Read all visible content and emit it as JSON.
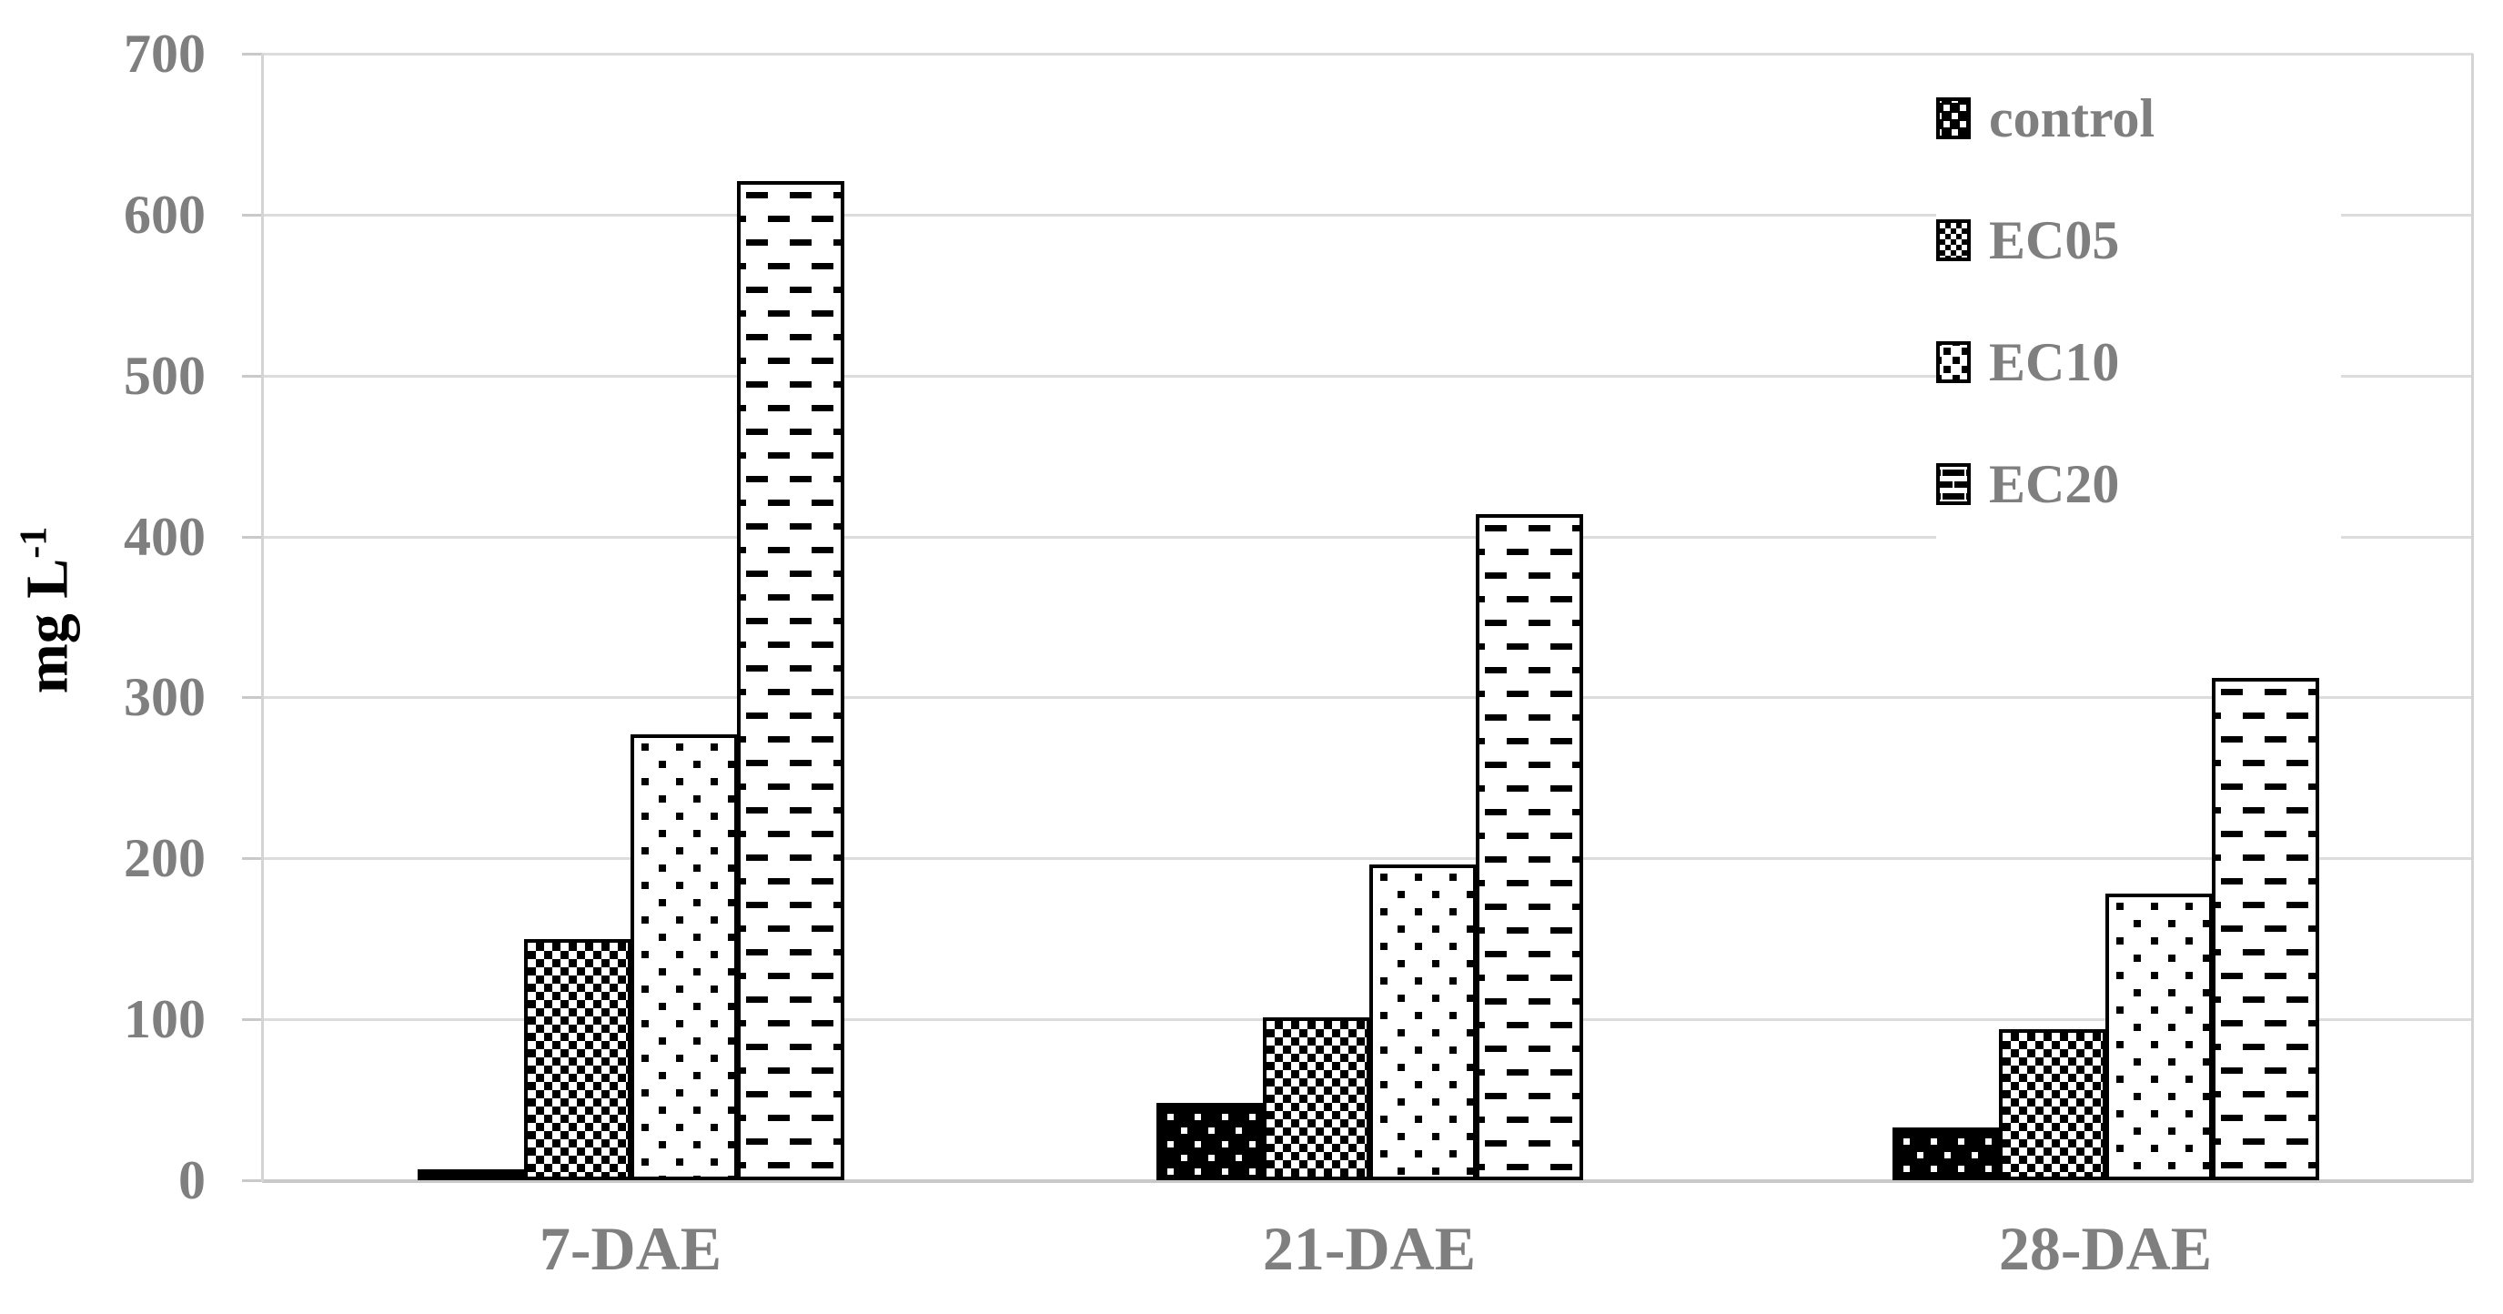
{
  "chart_data": {
    "type": "bar",
    "title": "",
    "categories": [
      "7-DAE",
      "21-DAE",
      "28-DAE"
    ],
    "series": [
      {
        "name": "control",
        "pattern": "control",
        "values": [
          7,
          48,
          33
        ]
      },
      {
        "name": "EC05",
        "pattern": "ec05",
        "values": [
          150,
          101,
          94
        ]
      },
      {
        "name": "EC10",
        "pattern": "ec10",
        "values": [
          277,
          196,
          178
        ]
      },
      {
        "name": "EC20",
        "pattern": "ec20",
        "values": [
          621,
          414,
          312
        ]
      }
    ],
    "xlabel": "",
    "ylabel": "mg L-1",
    "ylabel_main": "mg L",
    "ylabel_sup": "-1",
    "ylim": [
      0,
      700
    ],
    "yticks": [
      0,
      100,
      200,
      300,
      400,
      500,
      600,
      700
    ],
    "grid": true,
    "legend_position": "top-right",
    "colors": {
      "bar_outline": "#000000",
      "gridline": "#dcdcdc",
      "axis_text": "#7f7f7f",
      "axis_title_text": "#000000",
      "background": "#ffffff"
    }
  }
}
